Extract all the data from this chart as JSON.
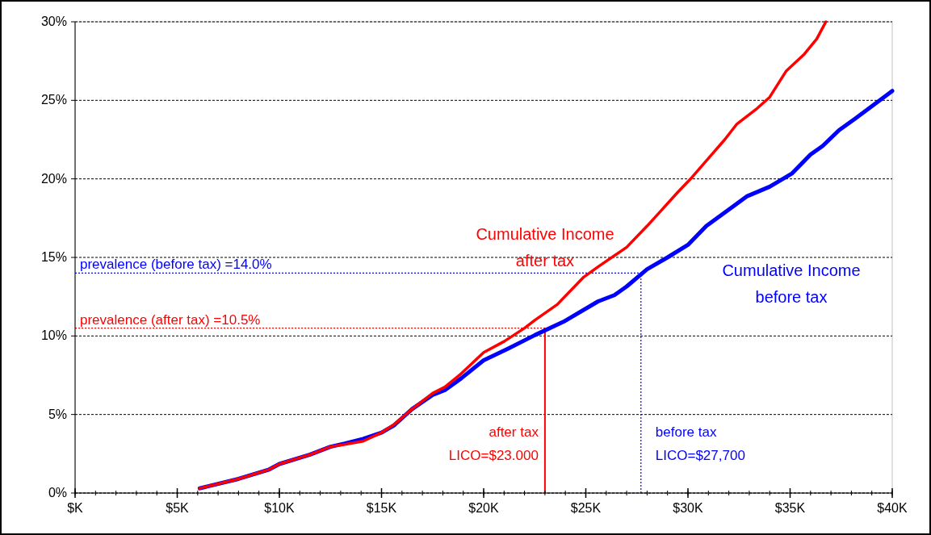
{
  "chart_data": {
    "type": "line",
    "xlim": [
      0,
      40
    ],
    "xticks": [
      {
        "value": 0,
        "label": "$K"
      },
      {
        "value": 5,
        "label": "$5K"
      },
      {
        "value": 10,
        "label": "$10K"
      },
      {
        "value": 15,
        "label": "$15K"
      },
      {
        "value": 20,
        "label": "$20K"
      },
      {
        "value": 25,
        "label": "$25K"
      },
      {
        "value": 30,
        "label": "$30K"
      },
      {
        "value": 35,
        "label": "$35K"
      },
      {
        "value": 40,
        "label": "$40K"
      }
    ],
    "ylim": [
      0,
      30
    ],
    "yticks": [
      {
        "value": 0,
        "label": "0%"
      },
      {
        "value": 5,
        "label": "5%"
      },
      {
        "value": 10,
        "label": "10%"
      },
      {
        "value": 15,
        "label": "15%"
      },
      {
        "value": 20,
        "label": "20%"
      },
      {
        "value": 25,
        "label": "25%"
      },
      {
        "value": 30,
        "label": "30%"
      }
    ],
    "grid": "y",
    "series": [
      {
        "name": "Cumulative Income before tax",
        "color": "#0000ff",
        "x": [
          6.1,
          8.0,
          9.5,
          10.0,
          11.5,
          12.5,
          13.2,
          14.1,
          15.0,
          15.6,
          16.5,
          17.5,
          18.1,
          18.9,
          20.0,
          21.2,
          22.5,
          23.9,
          25.6,
          26.4,
          27.0,
          28.0,
          29.0,
          30.0,
          30.9,
          32.9,
          34.0,
          35.1,
          36.0,
          36.6,
          37.4,
          38.2,
          40.0
        ],
        "values": [
          0.3,
          0.9,
          1.5,
          1.85,
          2.45,
          2.95,
          3.15,
          3.45,
          3.85,
          4.3,
          5.35,
          6.25,
          6.55,
          7.3,
          8.45,
          9.2,
          10.05,
          10.9,
          12.2,
          12.6,
          13.15,
          14.25,
          15.0,
          15.8,
          17.0,
          18.9,
          19.5,
          20.35,
          21.55,
          22.1,
          23.1,
          23.85,
          25.6
        ]
      },
      {
        "name": "Cumulative Income after tax",
        "color": "#ff0000",
        "x": [
          6.1,
          8.0,
          9.5,
          10.0,
          11.5,
          12.5,
          13.2,
          14.1,
          15.0,
          15.6,
          16.5,
          17.5,
          18.1,
          18.9,
          20.0,
          21.0,
          22.0,
          22.5,
          23.6,
          24.9,
          25.6,
          27.0,
          28.0,
          28.7,
          29.5,
          30.2,
          31.1,
          31.8,
          32.4,
          33.4,
          34.0,
          34.8,
          35.7,
          36.3,
          36.75
        ],
        "values": [
          0.3,
          0.9,
          1.5,
          1.85,
          2.45,
          2.95,
          3.1,
          3.3,
          3.85,
          4.35,
          5.35,
          6.35,
          6.75,
          7.6,
          8.95,
          9.65,
          10.5,
          11.0,
          12.0,
          13.75,
          14.4,
          15.65,
          17.0,
          18.0,
          19.15,
          20.1,
          21.45,
          22.5,
          23.5,
          24.5,
          25.2,
          26.85,
          27.95,
          28.9,
          30.0
        ]
      }
    ],
    "ref_lines": [
      {
        "axis": "y",
        "value": 14.0,
        "label": "prevalence (before tax) =14.0%",
        "color": "#0000ff",
        "line_style": "dotted"
      },
      {
        "axis": "y",
        "value": 10.5,
        "label": "prevalence (after tax) =10.5%",
        "color": "#ff0000",
        "line_style": "dotted"
      },
      {
        "axis": "x",
        "value": 23.0,
        "label": "after tax\nLICO=$23.000",
        "color": "#ff0000",
        "line_style": "solid"
      },
      {
        "axis": "x",
        "value": 27.7,
        "label": "before tax\nLICO=$27,700",
        "color": "#0000ff",
        "line_style": "dotted"
      }
    ]
  }
}
